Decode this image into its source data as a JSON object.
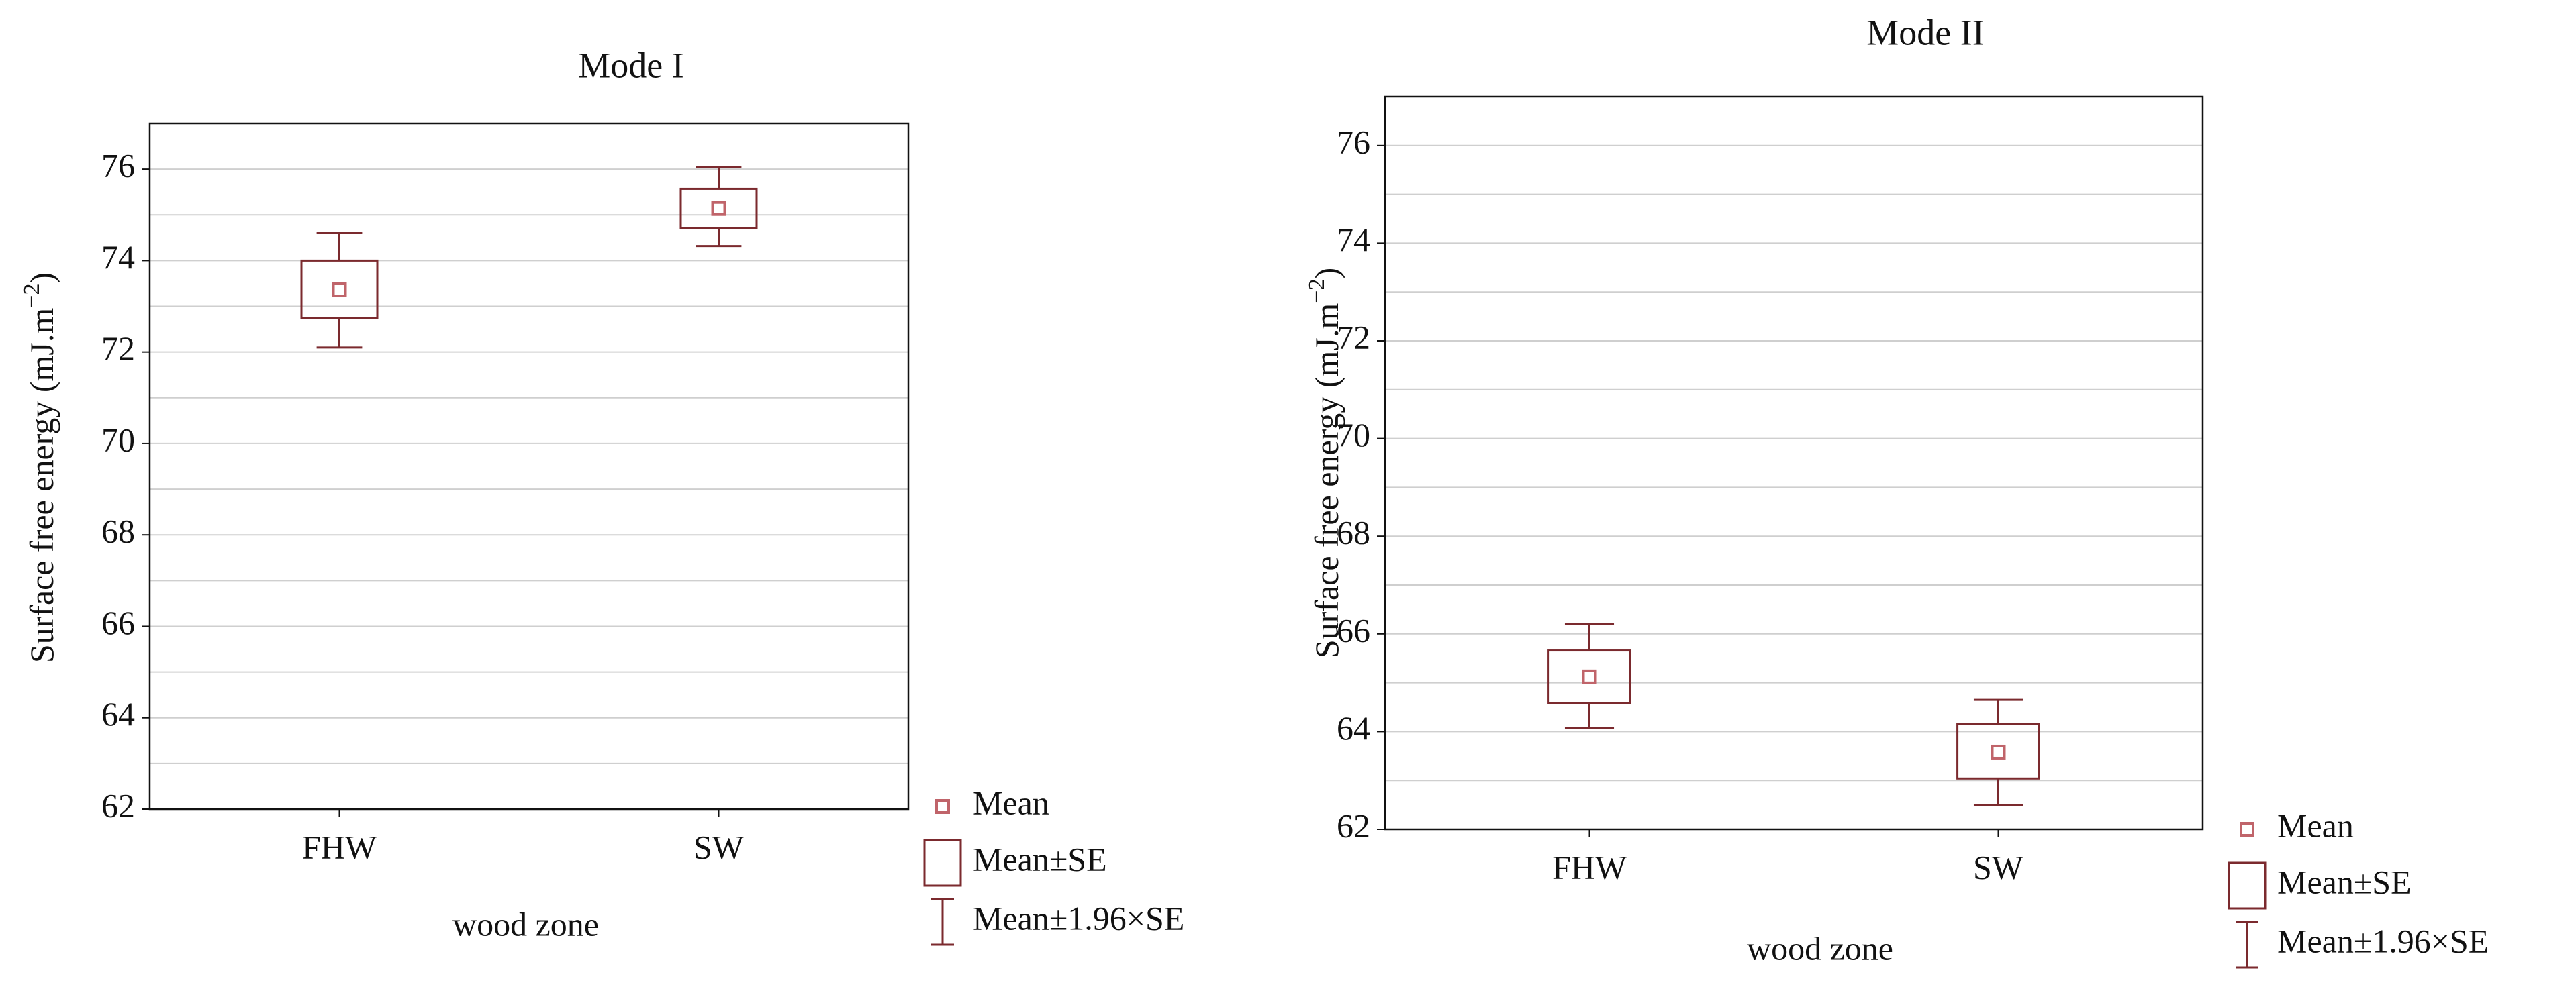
{
  "chart_data": [
    {
      "type": "box",
      "title": "Mode I",
      "x_label": "wood zone",
      "y_label": [
        "Surface free energy (mJ.m",
        "−2",
        ")"
      ],
      "categories": [
        "FHW",
        "SW"
      ],
      "mean": [
        73.36,
        75.14
      ],
      "se_low": [
        72.75,
        74.71
      ],
      "se_high": [
        74.0,
        75.57
      ],
      "ci_low": [
        72.1,
        74.32
      ],
      "ci_high": [
        74.6,
        76.04
      ],
      "ylim": [
        62,
        77
      ],
      "yticks": [
        62,
        64,
        66,
        68,
        70,
        72,
        74,
        76
      ],
      "minor_yticks": [
        63,
        65,
        67,
        69,
        71,
        73,
        75,
        77
      ],
      "grid": true,
      "color": "#7b2a2e",
      "mean_color": "#c0646a",
      "legend": [
        "Mean",
        "Mean±SE",
        "Mean±1.96×SE"
      ]
    },
    {
      "type": "box",
      "title": "Mode II",
      "x_label": "wood zone",
      "y_label": [
        "Surface free energy (mJ.m",
        "−2",
        ")"
      ],
      "categories": [
        "FHW",
        "SW"
      ],
      "mean": [
        65.12,
        63.58
      ],
      "se_low": [
        64.58,
        63.04
      ],
      "se_high": [
        65.66,
        64.15
      ],
      "ci_low": [
        64.07,
        62.5
      ],
      "ci_high": [
        66.2,
        64.65
      ],
      "ylim": [
        62,
        77
      ],
      "yticks": [
        62,
        64,
        66,
        68,
        70,
        72,
        74,
        76
      ],
      "minor_yticks": [
        63,
        65,
        67,
        69,
        71,
        73,
        75,
        77
      ],
      "grid": true,
      "color": "#7b2a2e",
      "mean_color": "#c0646a",
      "legend": [
        "Mean",
        "Mean±SE",
        "Mean±1.96×SE"
      ]
    }
  ]
}
